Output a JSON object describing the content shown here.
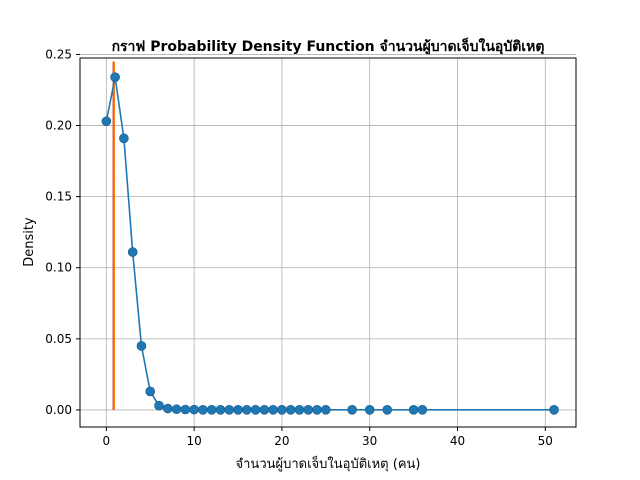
{
  "chart_data": {
    "type": "line",
    "title": "กราฟ Probability Density Function จำนวนผู้บาดเจ็บในอุบัติเหตุ",
    "xlabel": "จำนวนผู้บาดเจ็บในอุบัติเหตุ (คน)",
    "ylabel": "Density",
    "xlim": [
      -3,
      53.5
    ],
    "ylim": [
      -0.012,
      0.2475
    ],
    "xticks": [
      0,
      10,
      20,
      30,
      40,
      50
    ],
    "yticks": [
      0.0,
      0.05,
      0.1,
      0.15,
      0.2,
      0.25
    ],
    "ytick_labels": [
      "0.00",
      "0.05",
      "0.10",
      "0.15",
      "0.20",
      "0.25"
    ],
    "grid": true,
    "series": [
      {
        "color": "#1f77b4",
        "x": [
          0,
          1,
          2,
          3,
          4,
          5,
          6,
          7,
          8,
          9,
          10,
          11,
          12,
          13,
          14,
          15,
          16,
          17,
          18,
          19,
          20,
          21,
          22,
          23,
          24,
          25,
          28,
          30,
          32,
          35,
          36,
          51
        ],
        "y": [
          0.203,
          0.234,
          0.191,
          0.111,
          0.045,
          0.013,
          0.003,
          0.001,
          0.0005,
          0.0003,
          0.0002,
          0.0001,
          0.0001,
          0.0001,
          0.0001,
          0.0001,
          0.0001,
          0.0001,
          0.0001,
          0.0001,
          0.0001,
          0.0001,
          0.0001,
          0.0001,
          0.0001,
          0.0001,
          0.0001,
          0.0001,
          0.0001,
          0.0001,
          0.0001,
          0.0001
        ]
      }
    ],
    "vlines": [
      {
        "x": 0.8,
        "color": "#d62728",
        "ymin": 0.0,
        "ymax": 0.245
      },
      {
        "x": 0.85,
        "color": "#2ca02c",
        "ymin": 0.0,
        "ymax": 0.245
      },
      {
        "x": 0.9,
        "color": "#ff7f0e",
        "ymin": 0.0,
        "ymax": 0.245
      }
    ]
  }
}
